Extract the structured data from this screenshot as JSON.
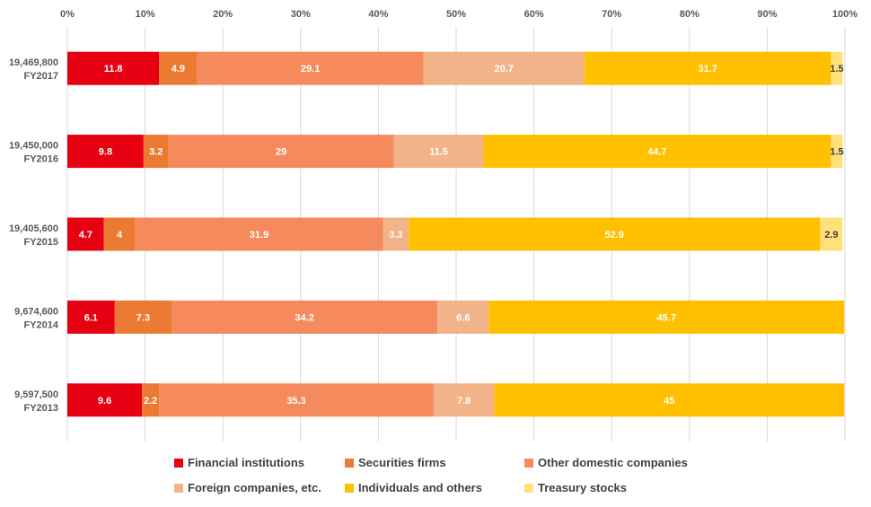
{
  "chart_data": {
    "type": "bar",
    "orientation": "horizontal",
    "stacked": true,
    "percent_axis": true,
    "xlim": [
      0,
      100
    ],
    "x_ticks": [
      "0%",
      "10%",
      "20%",
      "30%",
      "40%",
      "50%",
      "60%",
      "70%",
      "80%",
      "90%",
      "100%"
    ],
    "grid": true,
    "legend_position": "bottom",
    "categories": [
      {
        "shares": "19,469,800",
        "year": "FY2017"
      },
      {
        "shares": "19,450,000",
        "year": "FY2016"
      },
      {
        "shares": "19,405,600",
        "year": "FY2015"
      },
      {
        "shares": "9,674,600",
        "year": "FY2014"
      },
      {
        "shares": "9,597,500",
        "year": "FY2013"
      }
    ],
    "series": [
      {
        "name": "Financial institutions",
        "color": "#e60012",
        "label_color": "#ffffff",
        "values": [
          11.8,
          9.8,
          4.7,
          6.1,
          9.6
        ]
      },
      {
        "name": "Securities firms",
        "color": "#ec7a33",
        "label_color": "#ffffff",
        "values": [
          4.9,
          3.2,
          4,
          7.3,
          2.2
        ]
      },
      {
        "name": "Other domestic companies",
        "color": "#f58a5c",
        "label_color": "#ffffff",
        "values": [
          29.1,
          29,
          31.9,
          34.2,
          35.3
        ]
      },
      {
        "name": "Foreign companies, etc.",
        "color": "#f3b389",
        "label_color": "#ffffff",
        "values": [
          20.7,
          11.5,
          3.3,
          6.6,
          7.8
        ]
      },
      {
        "name": "Individuals and others",
        "color": "#ffc000",
        "label_color": "#ffffff",
        "values": [
          31.7,
          44.7,
          52.9,
          45.7,
          45
        ]
      },
      {
        "name": "Treasury stocks",
        "color": "#ffe07a",
        "label_color": "#404040",
        "values": [
          1.5,
          1.5,
          2.9,
          null,
          null
        ]
      }
    ]
  }
}
